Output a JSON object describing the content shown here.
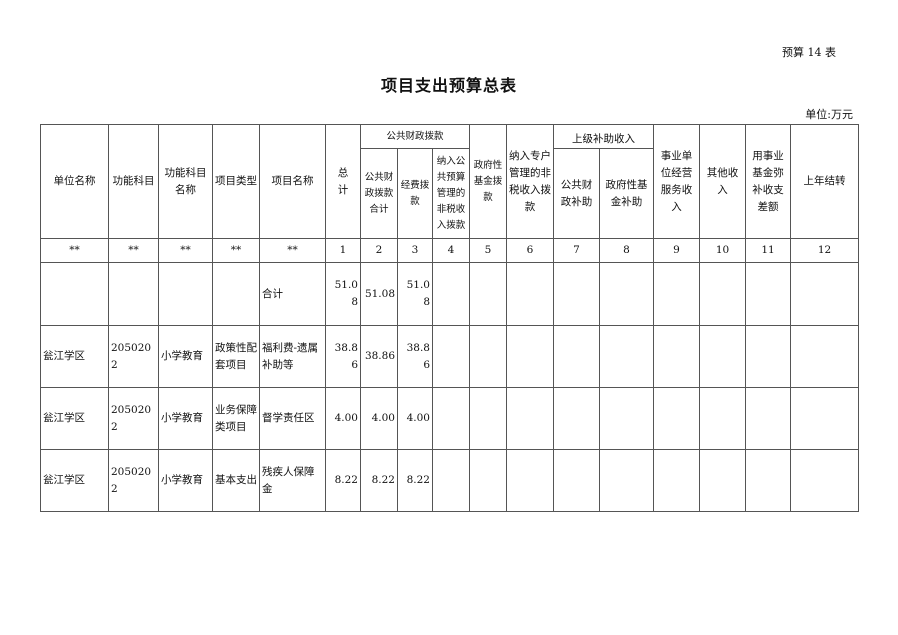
{
  "form_no": "预算 14 表",
  "title": "项目支出预算总表",
  "unit": "单位:万元",
  "headers": {
    "unit_name": "单位名称",
    "func_code": "功能科目",
    "func_name": "功能科目名称",
    "project_type": "项目类型",
    "project_name": "项目名称",
    "total": "总　计",
    "public_finance": "公共财政拨款",
    "public_finance_total": "公共财政拨款合计",
    "funding": "经费拨款",
    "nontax_budget": "纳入公共预算管理的非税收入拨款",
    "gov_fund": "政府性基金拨款",
    "special_nontax": "纳入专户管理的非税收入拨款",
    "superior_subsidy": "上级补助收入",
    "superior_public": "公共财政补助",
    "superior_gov_fund": "政府性基金补助",
    "operating_income": "事业单位经营服务收入",
    "other_income": "其他收入",
    "fund_balance": "用事业基金弥补收支差额",
    "carryover": "上年结转"
  },
  "index_row": [
    "**",
    "**",
    "**",
    "**",
    "**",
    "1",
    "2",
    "3",
    "4",
    "5",
    "6",
    "7",
    "8",
    "9",
    "10",
    "11",
    "12"
  ],
  "total_row": {
    "label": "合计",
    "total": "51.08",
    "public_total": "51.08",
    "funding": "51.08"
  },
  "rows": [
    {
      "unit": "瓮江学区",
      "code": "2050202",
      "func": "小学教育",
      "type": "政策性配套项目",
      "name": "福利费-遗属补助等",
      "total": "38.86",
      "public_total": "38.86",
      "funding": "38.86"
    },
    {
      "unit": "瓮江学区",
      "code": "2050202",
      "func": "小学教育",
      "type": "业务保障类项目",
      "name": "督学责任区",
      "total": "4.00",
      "public_total": "4.00",
      "funding": "4.00"
    },
    {
      "unit": "瓮江学区",
      "code": "2050202",
      "func": "小学教育",
      "type": "基本支出",
      "name": "残疾人保障金",
      "total": "8.22",
      "public_total": "8.22",
      "funding": "8.22"
    }
  ]
}
